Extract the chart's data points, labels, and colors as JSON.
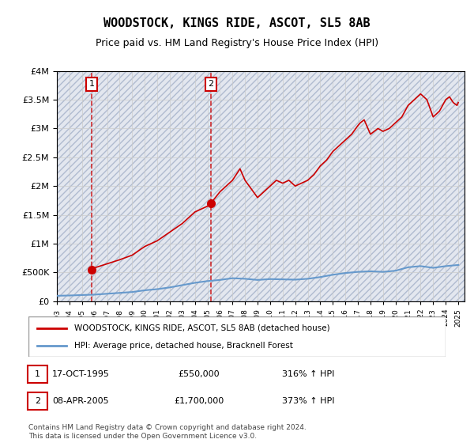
{
  "title": "WOODSTOCK, KINGS RIDE, ASCOT, SL5 8AB",
  "subtitle": "Price paid vs. HM Land Registry's House Price Index (HPI)",
  "legend_line1": "WOODSTOCK, KINGS RIDE, ASCOT, SL5 8AB (detached house)",
  "legend_line2": "HPI: Average price, detached house, Bracknell Forest",
  "sale1_label": "1",
  "sale1_date": "17-OCT-1995",
  "sale1_price": "£550,000",
  "sale1_hpi": "316% ↑ HPI",
  "sale1_year": 1995.79,
  "sale1_value": 550000,
  "sale2_label": "2",
  "sale2_date": "08-APR-2005",
  "sale2_price": "£1,700,000",
  "sale2_hpi": "373% ↑ HPI",
  "sale2_year": 2005.27,
  "sale2_value": 1700000,
  "footer": "Contains HM Land Registry data © Crown copyright and database right 2024.\nThis data is licensed under the Open Government Licence v3.0.",
  "hatch_color": "#c8d0e0",
  "background_color": "#e8edf5",
  "plot_bg": "#ffffff",
  "red_line_color": "#cc0000",
  "blue_line_color": "#6699cc",
  "marker_color": "#cc0000",
  "ylim": [
    0,
    4000000
  ],
  "xlim_start": 1993.0,
  "xlim_end": 2025.5
}
